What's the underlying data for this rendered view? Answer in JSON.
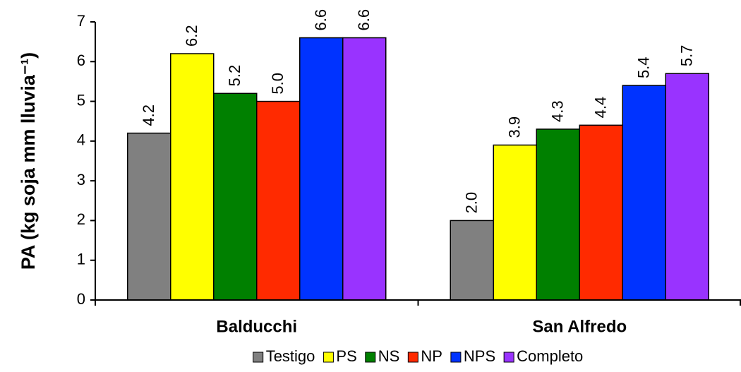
{
  "chart_data": {
    "type": "bar",
    "y_label": "PA (kg soja mm lluvia⁻¹)",
    "categories": [
      "Balducchi",
      "San Alfredo"
    ],
    "series": [
      {
        "name": "Testigo",
        "color": "#808080",
        "values": [
          4.2,
          2.0
        ],
        "value_labels": [
          "4.2",
          "2.0"
        ]
      },
      {
        "name": "PS",
        "color": "#ffff00",
        "values": [
          6.2,
          3.9
        ],
        "value_labels": [
          "6.2",
          "3.9"
        ]
      },
      {
        "name": "NS",
        "color": "#008000",
        "values": [
          5.2,
          4.3
        ],
        "value_labels": [
          "5.2",
          "4.3"
        ]
      },
      {
        "name": "NP",
        "color": "#ff2a00",
        "values": [
          5.0,
          4.4
        ],
        "value_labels": [
          "5.0",
          "4.4"
        ]
      },
      {
        "name": "NPS",
        "color": "#0033ff",
        "values": [
          6.6,
          5.4
        ],
        "value_labels": [
          "6.6",
          "5.4"
        ]
      },
      {
        "name": "Completo",
        "color": "#9933ff",
        "values": [
          6.6,
          5.7
        ],
        "value_labels": [
          "6.6",
          "5.7"
        ]
      }
    ],
    "ylim": [
      0,
      7
    ],
    "yticks": [
      0,
      1,
      2,
      3,
      4,
      5,
      6,
      7
    ],
    "grid": false,
    "legend": "bottom"
  }
}
